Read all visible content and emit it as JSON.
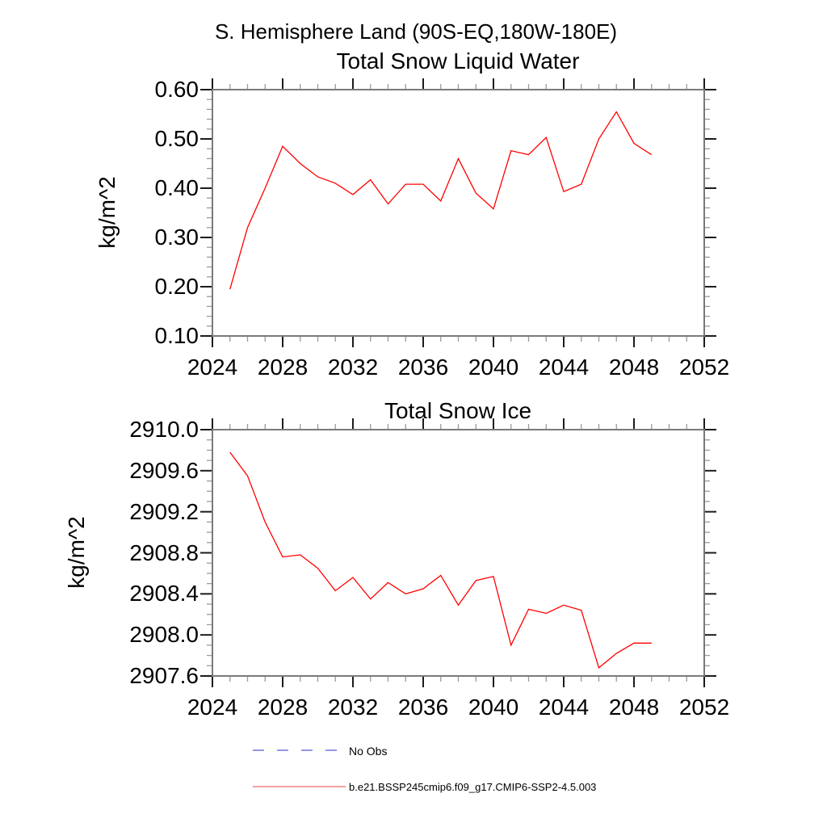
{
  "page": {
    "background": "#ffffff"
  },
  "header": {
    "suptitle": "S. Hemisphere Land (90S-EQ,180W-180E)"
  },
  "colors": {
    "series_line": "#ff0000",
    "frame": "#7a7a7a",
    "tick_major": "#1c1c1c",
    "tick_minor": "#9a9a9a",
    "legend_no_obs_line": "#7373d9",
    "legend_model_line": "#f28080",
    "text": "#000000"
  },
  "legend": {
    "items": [
      {
        "label": "No Obs",
        "line_color": "#7373d9",
        "dashed": true
      },
      {
        "label": "b.e21.BSSP245cmip6.f09_g17.CMIP6-SSP2-4.5.003",
        "line_color": "#f28080",
        "dashed": false
      }
    ]
  },
  "chart_data": [
    {
      "type": "line",
      "title": "Total Snow Liquid Water",
      "ylabel": "kg/m^2",
      "xlim": [
        2024,
        2052
      ],
      "ylim": [
        0.1,
        0.6
      ],
      "x_major_ticks": [
        2024,
        2028,
        2032,
        2036,
        2040,
        2044,
        2048,
        2052
      ],
      "x_tick_labels": [
        "2024",
        "2028",
        "2032",
        "2036",
        "2040",
        "2044",
        "2048",
        "2052"
      ],
      "x_minor_step": 1,
      "y_major_ticks": [
        0.1,
        0.2,
        0.3,
        0.4,
        0.5,
        0.6
      ],
      "y_tick_labels": [
        "0.10",
        "0.20",
        "0.30",
        "0.40",
        "0.50",
        "0.60"
      ],
      "y_minor_step": 0.02,
      "grid": false,
      "legend_position": "below",
      "x": [
        2025,
        2026,
        2027,
        2028,
        2029,
        2030,
        2031,
        2032,
        2033,
        2034,
        2035,
        2036,
        2037,
        2038,
        2039,
        2040,
        2041,
        2042,
        2043,
        2044,
        2045,
        2046,
        2047,
        2048,
        2049
      ],
      "series": [
        {
          "name": "b.e21.BSSP245cmip6.f09_g17.CMIP6-SSP2-4.5.003",
          "color": "#ff0000",
          "values": [
            0.195,
            0.32,
            0.4,
            0.485,
            0.45,
            0.423,
            0.41,
            0.387,
            0.417,
            0.368,
            0.408,
            0.408,
            0.374,
            0.46,
            0.39,
            0.358,
            0.476,
            0.468,
            0.503,
            0.393,
            0.408,
            0.5,
            0.555,
            0.491,
            0.468
          ]
        }
      ]
    },
    {
      "type": "line",
      "title": "Total Snow Ice",
      "ylabel": "kg/m^2",
      "xlim": [
        2024,
        2052
      ],
      "ylim": [
        2907.6,
        2910.0
      ],
      "x_major_ticks": [
        2024,
        2028,
        2032,
        2036,
        2040,
        2044,
        2048,
        2052
      ],
      "x_tick_labels": [
        "2024",
        "2028",
        "2032",
        "2036",
        "2040",
        "2044",
        "2048",
        "2052"
      ],
      "x_minor_step": 1,
      "y_major_ticks": [
        2907.6,
        2908.0,
        2908.4,
        2908.8,
        2909.2,
        2909.6,
        2910.0
      ],
      "y_tick_labels": [
        "2907.6",
        "2908.0",
        "2908.4",
        "2908.8",
        "2909.2",
        "2909.6",
        "2910.0"
      ],
      "y_minor_step": 0.1,
      "grid": false,
      "legend_position": "below",
      "x": [
        2025,
        2026,
        2027,
        2028,
        2029,
        2030,
        2031,
        2032,
        2033,
        2034,
        2035,
        2036,
        2037,
        2038,
        2039,
        2040,
        2041,
        2042,
        2043,
        2044,
        2045,
        2046,
        2047,
        2048,
        2049
      ],
      "series": [
        {
          "name": "b.e21.BSSP245cmip6.f09_g17.CMIP6-SSP2-4.5.003",
          "color": "#ff0000",
          "values": [
            2909.78,
            2909.55,
            2909.1,
            2908.76,
            2908.78,
            2908.65,
            2908.43,
            2908.56,
            2908.35,
            2908.51,
            2908.4,
            2908.45,
            2908.58,
            2908.29,
            2908.53,
            2908.57,
            2907.9,
            2908.25,
            2908.21,
            2908.29,
            2908.24,
            2907.68,
            2907.82,
            2907.92,
            2907.92
          ]
        }
      ]
    }
  ]
}
